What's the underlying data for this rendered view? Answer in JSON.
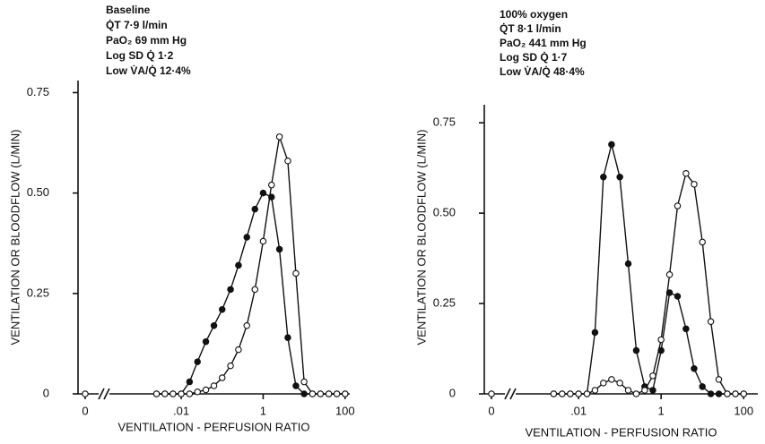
{
  "chart_data": [
    {
      "type": "line",
      "log_x": true,
      "annotations": [
        "Baseline",
        "Q̇T 7·9 l/min",
        "PaO₂ 69 mm Hg",
        "Log SD Q̇ 1·2",
        "Low V̇A/Q̇ 12·4%"
      ],
      "ylabel": "VENTILATION OR BLOODFLOW (L/MIN)",
      "xlabel": "VENTILATION - PERFUSION RATIO",
      "x": [
        0,
        0.0025,
        0.004,
        0.0063,
        0.01,
        0.016,
        0.025,
        0.04,
        0.063,
        0.1,
        0.16,
        0.25,
        0.4,
        0.63,
        1,
        1.6,
        2.5,
        4,
        6.3,
        10,
        16,
        25,
        40,
        63,
        100
      ],
      "series": [
        {
          "marker": "filled",
          "color": "#111111",
          "values": [
            null,
            0,
            0,
            0,
            0,
            0.03,
            0.08,
            0.13,
            0.17,
            0.21,
            0.26,
            0.32,
            0.39,
            0.46,
            0.5,
            0.49,
            0.36,
            0.14,
            0.02,
            0,
            0,
            0,
            0,
            0,
            0
          ]
        },
        {
          "marker": "open",
          "color": "#111111",
          "values": [
            0,
            0,
            0,
            0,
            0,
            0,
            0.005,
            0.01,
            0.02,
            0.04,
            0.07,
            0.11,
            0.17,
            0.26,
            0.38,
            0.52,
            0.64,
            0.58,
            0.3,
            0.03,
            0,
            0,
            0,
            0,
            0
          ]
        }
      ],
      "xlim": [
        0.00016,
        130
      ],
      "xticks": [
        0,
        {
          "value": 0.01,
          "label": ".01"
        },
        1,
        100
      ],
      "ylim": [
        0,
        0.78
      ],
      "yticks": [
        0,
        0.25,
        {
          "value": 0.5,
          "label": "0.50"
        },
        0.75
      ]
    },
    {
      "type": "line",
      "log_x": true,
      "annotations": [
        "100% oxygen",
        "Q̇T 8·1 l/min",
        "PaO₂ 441 mm Hg",
        "Log SD Q̇ 1·7",
        "Low V̇A/Q̇ 48·4%"
      ],
      "ylabel": "VENTILATION OR BLOODFLOW (L/MIN)",
      "xlabel": "VENTILATION - PERFUSION RATIO",
      "x": [
        0,
        0.0025,
        0.004,
        0.0063,
        0.01,
        0.016,
        0.025,
        0.04,
        0.063,
        0.1,
        0.16,
        0.25,
        0.4,
        0.63,
        1,
        1.6,
        2.5,
        4,
        6.3,
        10,
        16,
        25,
        40,
        63,
        100
      ],
      "series": [
        {
          "marker": "filled",
          "color": "#111111",
          "values": [
            null,
            0,
            0,
            0,
            0,
            0,
            0.17,
            0.6,
            0.69,
            0.6,
            0.36,
            0.12,
            0.02,
            0.01,
            0.12,
            0.28,
            0.27,
            0.18,
            0.07,
            0.02,
            0,
            0,
            0,
            0,
            0
          ]
        },
        {
          "marker": "open",
          "color": "#111111",
          "values": [
            0,
            0,
            0,
            0,
            0,
            0,
            0.01,
            0.03,
            0.04,
            0.03,
            0.01,
            0,
            0.01,
            0.05,
            0.15,
            0.33,
            0.52,
            0.61,
            0.58,
            0.42,
            0.2,
            0.04,
            0,
            0,
            0
          ]
        }
      ],
      "xlim": [
        0.0003,
        220
      ],
      "xticks": [
        0,
        {
          "value": 0.01,
          "label": ".01"
        },
        1,
        100
      ],
      "ylim": [
        0,
        0.8
      ],
      "yticks": [
        0,
        0.25,
        {
          "value": 0.5,
          "label": "0.50"
        },
        0.75
      ]
    }
  ]
}
